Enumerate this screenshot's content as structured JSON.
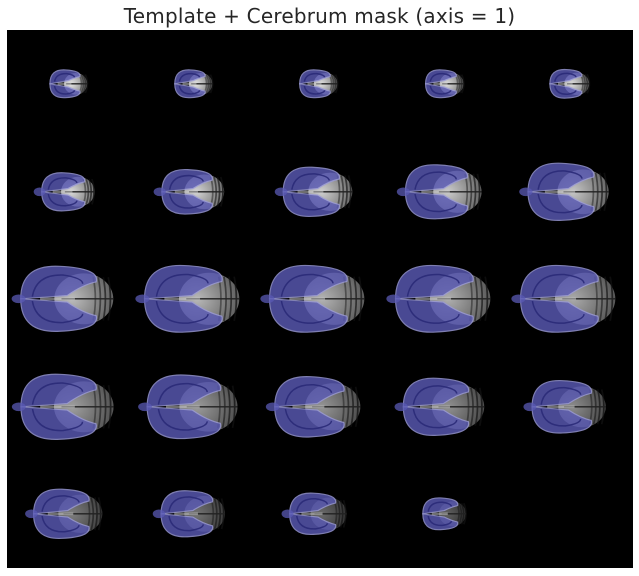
{
  "figure": {
    "title": "Template + Cerebrum mask (axis = 1)"
  },
  "grid": {
    "rows": 5,
    "cols": 5,
    "slice_count": 24,
    "slices": [
      {
        "brain": 0.2,
        "mask": 0.45,
        "cerebellum": 0.3,
        "intensity": 0.95
      },
      {
        "brain": 0.24,
        "mask": 0.48,
        "cerebellum": 0.32,
        "intensity": 0.95
      },
      {
        "brain": 0.28,
        "mask": 0.5,
        "cerebellum": 0.34,
        "intensity": 0.93
      },
      {
        "brain": 0.32,
        "mask": 0.52,
        "cerebellum": 0.36,
        "intensity": 0.92
      },
      {
        "brain": 0.36,
        "mask": 0.54,
        "cerebellum": 0.38,
        "intensity": 0.92
      },
      {
        "brain": 0.48,
        "mask": 0.58,
        "cerebellum": 0.4,
        "intensity": 0.9
      },
      {
        "brain": 0.56,
        "mask": 0.6,
        "cerebellum": 0.42,
        "intensity": 0.88
      },
      {
        "brain": 0.62,
        "mask": 0.62,
        "cerebellum": 0.42,
        "intensity": 0.86
      },
      {
        "brain": 0.68,
        "mask": 0.64,
        "cerebellum": 0.42,
        "intensity": 0.84
      },
      {
        "brain": 0.72,
        "mask": 0.65,
        "cerebellum": 0.42,
        "intensity": 0.82
      },
      {
        "brain": 0.82,
        "mask": 0.68,
        "cerebellum": 0.44,
        "intensity": 0.78
      },
      {
        "brain": 0.84,
        "mask": 0.68,
        "cerebellum": 0.44,
        "intensity": 0.76
      },
      {
        "brain": 0.84,
        "mask": 0.68,
        "cerebellum": 0.44,
        "intensity": 0.74
      },
      {
        "brain": 0.84,
        "mask": 0.68,
        "cerebellum": 0.44,
        "intensity": 0.72
      },
      {
        "brain": 0.84,
        "mask": 0.68,
        "cerebellum": 0.44,
        "intensity": 0.7
      },
      {
        "brain": 0.82,
        "mask": 0.66,
        "cerebellum": 0.46,
        "intensity": 0.66
      },
      {
        "brain": 0.8,
        "mask": 0.66,
        "cerebellum": 0.46,
        "intensity": 0.64
      },
      {
        "brain": 0.76,
        "mask": 0.64,
        "cerebellum": 0.46,
        "intensity": 0.62
      },
      {
        "brain": 0.72,
        "mask": 0.62,
        "cerebellum": 0.46,
        "intensity": 0.6
      },
      {
        "brain": 0.66,
        "mask": 0.6,
        "cerebellum": 0.44,
        "intensity": 0.58
      },
      {
        "brain": 0.62,
        "mask": 0.58,
        "cerebellum": 0.42,
        "intensity": 0.52
      },
      {
        "brain": 0.58,
        "mask": 0.56,
        "cerebellum": 0.4,
        "intensity": 0.48
      },
      {
        "brain": 0.52,
        "mask": 0.54,
        "cerebellum": 0.38,
        "intensity": 0.44
      },
      {
        "brain": 0.4,
        "mask": 0.5,
        "cerebellum": 0.34,
        "intensity": 0.4
      }
    ]
  },
  "colors": {
    "background": "#000000",
    "mask_overlay": "#5a5ab4",
    "mask_overlay_dark": "#2a2a78",
    "tissue": "#c8c8c8",
    "mask_contour": "#9a9ad8",
    "title_text": "#262626"
  }
}
